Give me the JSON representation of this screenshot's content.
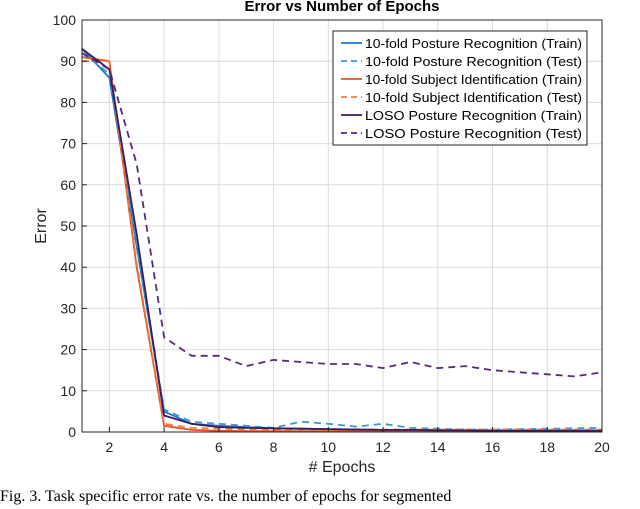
{
  "chart_data": {
    "type": "line",
    "title": "Error vs Number of Epochs",
    "xlabel": "# Epochs",
    "ylabel": "Error",
    "xlim": [
      1,
      20
    ],
    "ylim": [
      0,
      100
    ],
    "xticks": [
      2,
      4,
      6,
      8,
      10,
      12,
      14,
      16,
      18,
      20
    ],
    "yticks": [
      0,
      10,
      20,
      30,
      40,
      50,
      60,
      70,
      80,
      90,
      100
    ],
    "grid": true,
    "legend_position": "top-right",
    "x": [
      1,
      2,
      3,
      4,
      5,
      6,
      7,
      8,
      9,
      10,
      11,
      12,
      13,
      14,
      15,
      16,
      17,
      18,
      19,
      20
    ],
    "series": [
      {
        "name": "10-fold Posture Recognition (Train)",
        "color": "#1f77c4",
        "dash": "solid",
        "values": [
          93,
          86,
          45,
          5,
          2,
          1.5,
          1.2,
          0.9,
          0.8,
          0.7,
          0.6,
          0.5,
          0.5,
          0.5,
          0.4,
          0.4,
          0.4,
          0.4,
          0.4,
          0.4
        ]
      },
      {
        "name": "10-fold Posture Recognition (Test)",
        "color": "#3a9ad9",
        "dash": "dashed",
        "values": [
          92,
          87,
          46,
          5.5,
          2.5,
          2,
          1.5,
          1,
          2.5,
          2,
          1.3,
          2,
          1,
          0.8,
          0.6,
          0.6,
          0.7,
          0.8,
          0.9,
          1
        ]
      },
      {
        "name": "10-fold Subject Identification (Train)",
        "color": "#e8541c",
        "dash": "solid",
        "values": [
          91,
          90,
          40,
          1.5,
          0.5,
          0.3,
          0.2,
          0.2,
          0.2,
          0.2,
          0.2,
          0.2,
          0.2,
          0.2,
          0.2,
          0.2,
          0.2,
          0.2,
          0.2,
          0.2
        ]
      },
      {
        "name": "10-fold Subject Identification (Test)",
        "color": "#ee7d48",
        "dash": "dashed",
        "values": [
          90,
          90,
          41,
          2,
          1,
          0.8,
          0.6,
          0.6,
          0.6,
          0.6,
          0.6,
          0.6,
          0.6,
          0.6,
          0.6,
          0.6,
          0.6,
          0.6,
          0.6,
          0.6
        ]
      },
      {
        "name": "LOSO Posture Recognition (Train)",
        "color": "#3b1a5c",
        "dash": "solid",
        "values": [
          93,
          88,
          48,
          4,
          2,
          1.2,
          1,
          0.9,
          0.8,
          0.7,
          0.6,
          0.5,
          0.5,
          0.4,
          0.4,
          0.3,
          0.3,
          0.3,
          0.3,
          0.3
        ]
      },
      {
        "name": "LOSO Posture Recognition (Test)",
        "color": "#5a2a78",
        "dash": "dashed",
        "values": [
          92,
          88,
          65,
          23,
          18.5,
          18.5,
          16,
          17.5,
          17,
          16.5,
          16.5,
          15.5,
          17,
          15.5,
          16,
          15,
          14.5,
          14,
          13.5,
          14.5
        ]
      }
    ]
  },
  "caption": {
    "text": "Fig. 3.    Task specific error rate vs. the number of epochs for segmented"
  }
}
